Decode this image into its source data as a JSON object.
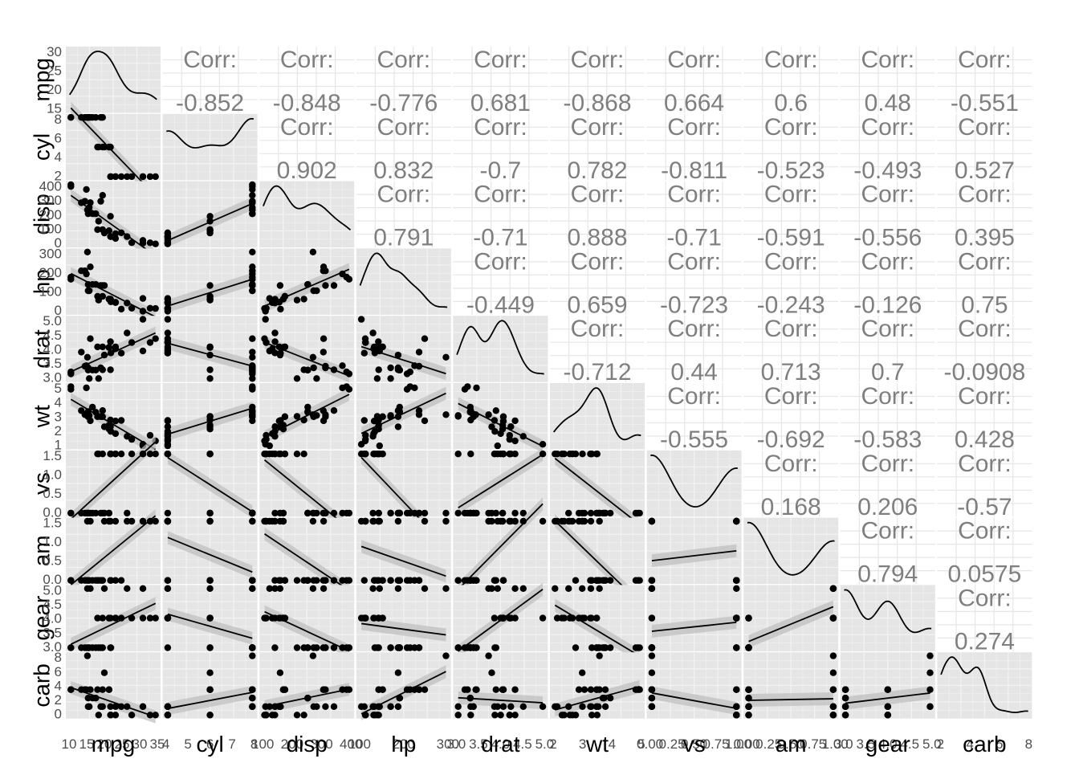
{
  "chart_data": {
    "type": "scatter",
    "title": "",
    "variables": [
      "mpg",
      "cyl",
      "disp",
      "hp",
      "drat",
      "wt",
      "vs",
      "am",
      "gear",
      "carb"
    ],
    "corr_label": "Corr:",
    "correlations": [
      {
        "row": "mpg",
        "col": "cyl",
        "value": "-0.852"
      },
      {
        "row": "mpg",
        "col": "disp",
        "value": "-0.848"
      },
      {
        "row": "mpg",
        "col": "hp",
        "value": "-0.776"
      },
      {
        "row": "mpg",
        "col": "drat",
        "value": "0.681"
      },
      {
        "row": "mpg",
        "col": "wt",
        "value": "-0.868"
      },
      {
        "row": "mpg",
        "col": "vs",
        "value": "0.664"
      },
      {
        "row": "mpg",
        "col": "am",
        "value": "0.6"
      },
      {
        "row": "mpg",
        "col": "gear",
        "value": "0.48"
      },
      {
        "row": "mpg",
        "col": "carb",
        "value": "-0.551"
      },
      {
        "row": "cyl",
        "col": "disp",
        "value": "0.902"
      },
      {
        "row": "cyl",
        "col": "hp",
        "value": "0.832"
      },
      {
        "row": "cyl",
        "col": "drat",
        "value": "-0.7"
      },
      {
        "row": "cyl",
        "col": "wt",
        "value": "0.782"
      },
      {
        "row": "cyl",
        "col": "vs",
        "value": "-0.811"
      },
      {
        "row": "cyl",
        "col": "am",
        "value": "-0.523"
      },
      {
        "row": "cyl",
        "col": "gear",
        "value": "-0.493"
      },
      {
        "row": "cyl",
        "col": "carb",
        "value": "0.527"
      },
      {
        "row": "disp",
        "col": "hp",
        "value": "0.791"
      },
      {
        "row": "disp",
        "col": "drat",
        "value": "-0.71"
      },
      {
        "row": "disp",
        "col": "wt",
        "value": "0.888"
      },
      {
        "row": "disp",
        "col": "vs",
        "value": "-0.71"
      },
      {
        "row": "disp",
        "col": "am",
        "value": "-0.591"
      },
      {
        "row": "disp",
        "col": "gear",
        "value": "-0.556"
      },
      {
        "row": "disp",
        "col": "carb",
        "value": "0.395"
      },
      {
        "row": "hp",
        "col": "drat",
        "value": "-0.449"
      },
      {
        "row": "hp",
        "col": "wt",
        "value": "0.659"
      },
      {
        "row": "hp",
        "col": "vs",
        "value": "-0.723"
      },
      {
        "row": "hp",
        "col": "am",
        "value": "-0.243"
      },
      {
        "row": "hp",
        "col": "gear",
        "value": "-0.126"
      },
      {
        "row": "hp",
        "col": "carb",
        "value": "0.75"
      },
      {
        "row": "drat",
        "col": "wt",
        "value": "-0.712"
      },
      {
        "row": "drat",
        "col": "vs",
        "value": "0.44"
      },
      {
        "row": "drat",
        "col": "am",
        "value": "0.713"
      },
      {
        "row": "drat",
        "col": "gear",
        "value": "0.7"
      },
      {
        "row": "drat",
        "col": "carb",
        "value": "-0.0908"
      },
      {
        "row": "wt",
        "col": "vs",
        "value": "-0.555"
      },
      {
        "row": "wt",
        "col": "am",
        "value": "-0.692"
      },
      {
        "row": "wt",
        "col": "gear",
        "value": "-0.583"
      },
      {
        "row": "wt",
        "col": "carb",
        "value": "0.428"
      },
      {
        "row": "vs",
        "col": "am",
        "value": "0.168"
      },
      {
        "row": "vs",
        "col": "gear",
        "value": "0.206"
      },
      {
        "row": "vs",
        "col": "carb",
        "value": "-0.57"
      },
      {
        "row": "am",
        "col": "gear",
        "value": "0.794"
      },
      {
        "row": "am",
        "col": "carb",
        "value": "0.0575"
      },
      {
        "row": "gear",
        "col": "carb",
        "value": "0.274"
      }
    ],
    "axes": {
      "mpg": {
        "range": [
          10.4,
          33.9
        ],
        "x_ticks": [
          "10",
          "15",
          "20",
          "25",
          "30",
          "35"
        ],
        "y_ticks": [
          "15",
          "20",
          "25",
          "30"
        ]
      },
      "cyl": {
        "range": [
          4,
          8
        ],
        "x_ticks": [
          "4",
          "5",
          "6",
          "7",
          "8"
        ],
        "y_ticks": [
          "2",
          "4",
          "6",
          "8"
        ]
      },
      "disp": {
        "range": [
          71.1,
          472
        ],
        "x_ticks": [
          "100",
          "200",
          "300",
          "400"
        ],
        "y_ticks": [
          "0",
          "100",
          "200",
          "300",
          "400"
        ]
      },
      "hp": {
        "range": [
          52,
          335
        ],
        "x_ticks": [
          "100",
          "200",
          "300"
        ],
        "y_ticks": [
          "0",
          "100",
          "200",
          "300"
        ]
      },
      "drat": {
        "range": [
          2.76,
          4.93
        ],
        "x_ticks": [
          "3.0",
          "3.5",
          "4.0",
          "4.5",
          "5.0"
        ],
        "y_ticks": [
          "3.0",
          "3.5",
          "4.0",
          "4.5",
          "5.0"
        ]
      },
      "wt": {
        "range": [
          1.513,
          5.424
        ],
        "x_ticks": [
          "2",
          "3",
          "4",
          "5"
        ],
        "y_ticks": [
          "1",
          "2",
          "3",
          "4",
          "5"
        ]
      },
      "vs": {
        "range": [
          0,
          1
        ],
        "x_ticks": [
          "0.00",
          "0.25",
          "0.50",
          "0.75",
          "1.00"
        ],
        "y_ticks": [
          "0.0",
          "0.5",
          "1.0",
          "1.5"
        ]
      },
      "am": {
        "range": [
          0,
          1
        ],
        "x_ticks": [
          "0.00",
          "0.25",
          "0.50",
          "0.75",
          "1.00"
        ],
        "y_ticks": [
          "0.0",
          "0.5",
          "1.0",
          "1.5"
        ]
      },
      "gear": {
        "range": [
          3,
          5
        ],
        "x_ticks": [
          "3.0",
          "3.5",
          "4.0",
          "4.5",
          "5.0"
        ],
        "y_ticks": [
          "3.0",
          "3.5",
          "4.0",
          "4.5",
          "5.0"
        ]
      },
      "carb": {
        "range": [
          1,
          8
        ],
        "x_ticks": [
          "2",
          "4",
          "6",
          "8"
        ],
        "y_ticks": [
          "0",
          "2",
          "4",
          "6",
          "8"
        ]
      }
    },
    "observations": [
      [
        21.0,
        6,
        160.0,
        110,
        3.9,
        2.62,
        0,
        1,
        4,
        4
      ],
      [
        21.0,
        6,
        160.0,
        110,
        3.9,
        2.875,
        0,
        1,
        4,
        4
      ],
      [
        22.8,
        4,
        108.0,
        93,
        3.85,
        2.32,
        1,
        1,
        4,
        1
      ],
      [
        21.4,
        6,
        258.0,
        110,
        3.08,
        3.215,
        1,
        0,
        3,
        1
      ],
      [
        18.7,
        8,
        360.0,
        175,
        3.15,
        3.44,
        0,
        0,
        3,
        2
      ],
      [
        18.1,
        6,
        225.0,
        105,
        2.76,
        3.46,
        1,
        0,
        3,
        1
      ],
      [
        14.3,
        8,
        360.0,
        245,
        3.21,
        3.57,
        0,
        0,
        3,
        4
      ],
      [
        24.4,
        4,
        146.7,
        62,
        3.69,
        3.19,
        1,
        0,
        4,
        2
      ],
      [
        22.8,
        4,
        140.8,
        95,
        3.92,
        3.15,
        1,
        0,
        4,
        2
      ],
      [
        19.2,
        6,
        167.6,
        123,
        3.92,
        3.44,
        1,
        0,
        4,
        4
      ],
      [
        17.8,
        6,
        167.6,
        123,
        3.92,
        3.44,
        1,
        0,
        4,
        4
      ],
      [
        16.4,
        8,
        275.8,
        180,
        3.07,
        4.07,
        0,
        0,
        3,
        3
      ],
      [
        17.3,
        8,
        275.8,
        180,
        3.07,
        3.73,
        0,
        0,
        3,
        3
      ],
      [
        15.2,
        8,
        275.8,
        180,
        3.07,
        3.78,
        0,
        0,
        3,
        3
      ],
      [
        10.4,
        8,
        472.0,
        205,
        2.93,
        5.25,
        0,
        0,
        3,
        4
      ],
      [
        10.4,
        8,
        460.0,
        215,
        3.0,
        5.424,
        0,
        0,
        3,
        4
      ],
      [
        14.7,
        8,
        440.0,
        230,
        3.23,
        5.345,
        0,
        0,
        3,
        4
      ],
      [
        32.4,
        4,
        78.7,
        66,
        4.08,
        2.2,
        1,
        1,
        4,
        1
      ],
      [
        30.4,
        4,
        75.7,
        52,
        4.93,
        1.615,
        1,
        1,
        4,
        2
      ],
      [
        33.9,
        4,
        71.1,
        65,
        4.22,
        1.835,
        1,
        1,
        4,
        1
      ],
      [
        21.5,
        4,
        120.1,
        97,
        3.7,
        2.465,
        1,
        0,
        3,
        1
      ],
      [
        15.5,
        8,
        318.0,
        150,
        2.76,
        3.52,
        0,
        0,
        3,
        2
      ],
      [
        15.2,
        8,
        304.0,
        150,
        3.15,
        3.435,
        0,
        0,
        3,
        2
      ],
      [
        13.3,
        8,
        350.0,
        245,
        3.73,
        3.84,
        0,
        0,
        3,
        4
      ],
      [
        19.2,
        8,
        400.0,
        175,
        3.08,
        3.845,
        0,
        0,
        3,
        2
      ],
      [
        27.3,
        4,
        79.0,
        66,
        4.08,
        1.935,
        1,
        1,
        4,
        1
      ],
      [
        26.0,
        4,
        120.3,
        91,
        4.43,
        2.14,
        0,
        1,
        5,
        2
      ],
      [
        30.4,
        4,
        95.1,
        113,
        3.77,
        1.513,
        1,
        1,
        5,
        2
      ],
      [
        15.8,
        8,
        351.0,
        264,
        4.22,
        3.17,
        0,
        1,
        5,
        4
      ],
      [
        19.7,
        6,
        145.0,
        175,
        3.62,
        2.77,
        0,
        1,
        5,
        6
      ],
      [
        15.0,
        8,
        301.0,
        335,
        3.54,
        3.57,
        0,
        1,
        5,
        8
      ],
      [
        21.4,
        4,
        121.0,
        109,
        4.11,
        2.78,
        1,
        1,
        4,
        2
      ]
    ]
  }
}
